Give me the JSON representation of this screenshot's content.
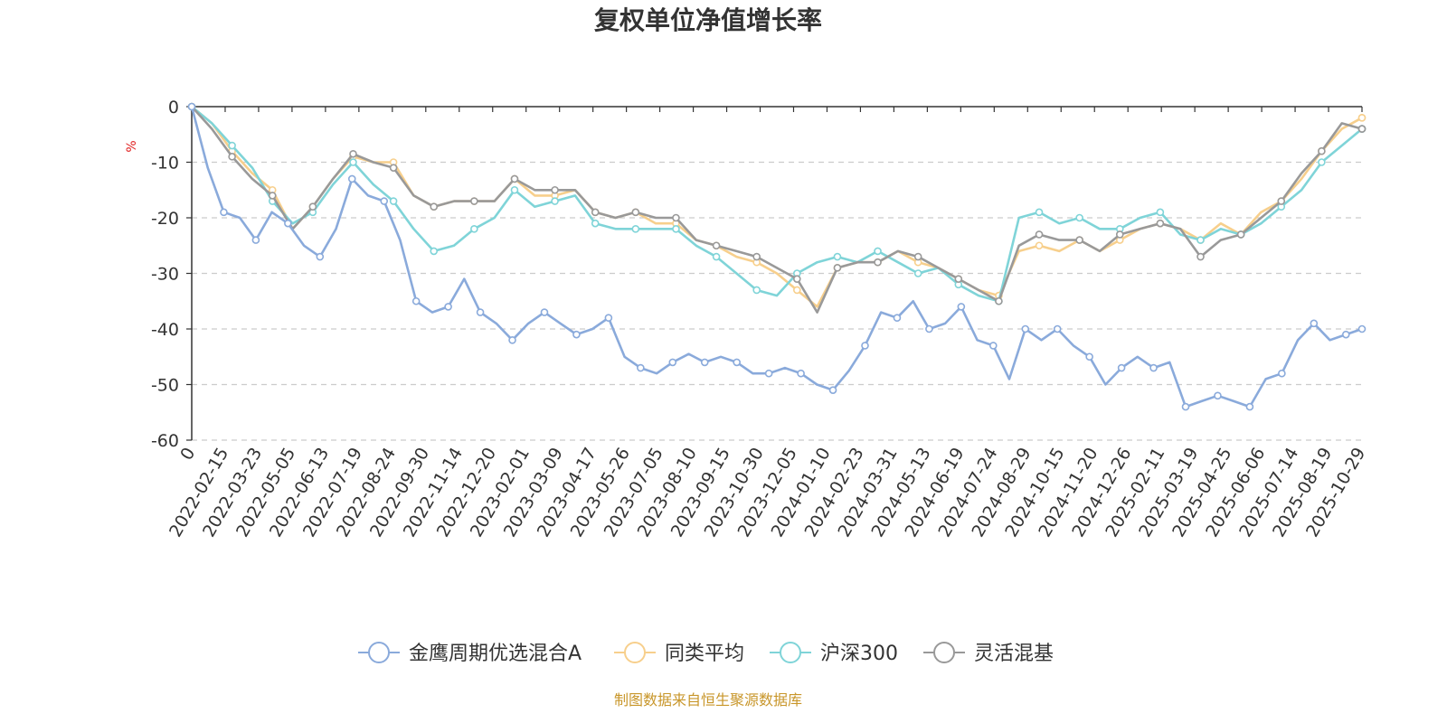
{
  "chart_data": {
    "type": "line",
    "title": "复权单位净值增长率",
    "y_unit": "%",
    "ylim": [
      -60,
      0
    ],
    "y_ticks": [
      0,
      -10,
      -20,
      -30,
      -40,
      -50,
      -60
    ],
    "x_tick_labels": [
      "0",
      "2022-02-15",
      "2022-03-23",
      "2022-05-05",
      "2022-06-13",
      "2022-07-19",
      "2022-08-24",
      "2022-09-30",
      "2022-11-14",
      "2022-12-20",
      "2023-02-01",
      "2023-03-09",
      "2023-04-17",
      "2023-05-26",
      "2023-07-05",
      "2023-08-10",
      "2023-09-15",
      "2023-10-30",
      "2023-12-05",
      "2024-01-10",
      "2024-02-23",
      "2024-03-31",
      "2024-05-13",
      "2024-06-19",
      "2024-07-24",
      "2024-08-29",
      "2024-10-15",
      "2024-11-20",
      "2024-12-26",
      "2025-02-11",
      "2025-03-19",
      "2025-04-25",
      "2025-06-06",
      "2025-07-14",
      "2025-08-19",
      "2025-10-29"
    ],
    "legend_position": "bottom",
    "grid": true,
    "series": [
      {
        "name": "金鹰周期优选混合A",
        "color": "#8aaadb",
        "values": [
          0,
          -11,
          -19,
          -20,
          -24,
          -19,
          -21,
          -25,
          -27,
          -22,
          -13,
          -16,
          -17,
          -24,
          -35,
          -37,
          -36,
          -31,
          -37,
          -39,
          -42,
          -39,
          -37,
          -39,
          -41,
          -40,
          -38,
          -45,
          -47,
          -48,
          -46,
          -44.5,
          -46,
          -45,
          -46,
          -48,
          -48,
          -47,
          -48,
          -50,
          -51,
          -47.5,
          -43,
          -37,
          -38,
          -35,
          -40,
          -39,
          -36,
          -42,
          -43,
          -49,
          -40,
          -42,
          -40,
          -43,
          -45,
          -50,
          -47,
          -45,
          -47,
          -46,
          -54,
          -53,
          -52,
          -53,
          -54,
          -49,
          -48,
          -42,
          -39,
          -42,
          -41,
          -40
        ]
      },
      {
        "name": "同类平均",
        "color": "#f7cf8c",
        "values": [
          0,
          -3,
          -8,
          -12,
          -15,
          -22,
          -18,
          -13,
          -9,
          -10,
          -10,
          -16,
          -18,
          -17,
          -17,
          -17,
          -13,
          -16,
          -16,
          -15,
          -19,
          -20,
          -19,
          -21,
          -21,
          -24,
          -25,
          -27,
          -28,
          -30,
          -33,
          -36,
          -29,
          -28,
          -28,
          -26,
          -28,
          -29,
          -31,
          -33,
          -34,
          -26,
          -25,
          -26,
          -24,
          -26,
          -24,
          -22,
          -21,
          -22,
          -24,
          -21,
          -23,
          -19,
          -17,
          -13,
          -8,
          -4,
          -2
        ]
      },
      {
        "name": "沪深300",
        "color": "#7fd4d8",
        "values": [
          0,
          -3,
          -7,
          -11,
          -17,
          -21,
          -19,
          -14,
          -10,
          -14,
          -17,
          -22,
          -26,
          -25,
          -22,
          -20,
          -15,
          -18,
          -17,
          -16,
          -21,
          -22,
          -22,
          -22,
          -22,
          -25,
          -27,
          -30,
          -33,
          -34,
          -30,
          -28,
          -27,
          -28,
          -26,
          -28,
          -30,
          -29,
          -32,
          -34,
          -35,
          -20,
          -19,
          -21,
          -20,
          -22,
          -22,
          -20,
          -19,
          -23,
          -24,
          -22,
          -23,
          -21,
          -18,
          -15,
          -10,
          -7,
          -4
        ]
      },
      {
        "name": "灵活混基",
        "color": "#999999",
        "values": [
          0,
          -4,
          -9,
          -13,
          -16,
          -22,
          -18,
          -13,
          -8.5,
          -10,
          -11,
          -16,
          -18,
          -17,
          -17,
          -17,
          -13,
          -15,
          -15,
          -15,
          -19,
          -20,
          -19,
          -20,
          -20,
          -24,
          -25,
          -26,
          -27,
          -29,
          -31,
          -37,
          -29,
          -28,
          -28,
          -26,
          -27,
          -29,
          -31,
          -33,
          -35,
          -25,
          -23,
          -24,
          -24,
          -26,
          -23,
          -22,
          -21,
          -22,
          -27,
          -24,
          -23,
          -20,
          -17,
          -12,
          -8,
          -3,
          -4
        ]
      }
    ]
  },
  "source_text": "制图数据来自恒生聚源数据库"
}
